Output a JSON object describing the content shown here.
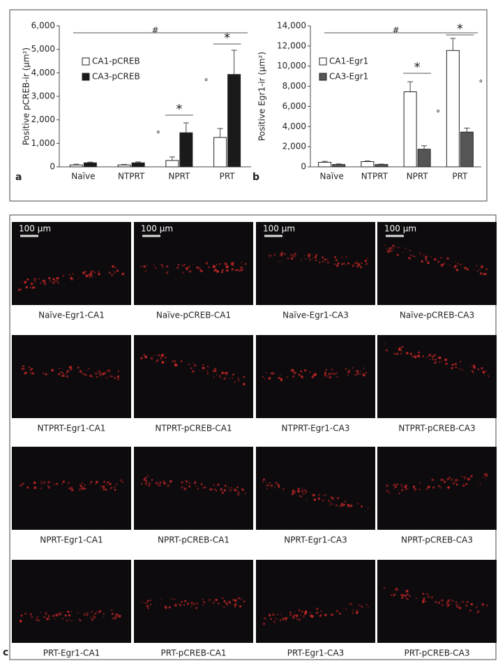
{
  "chart_data": [
    {
      "type": "bar",
      "panel": "a",
      "y_label": "Positive pCREB-ir (μm²)",
      "categories": [
        "Naïve",
        "NTPRT",
        "NPRT",
        "PRT"
      ],
      "series": [
        {
          "name": "CA1-pCREB",
          "color": "#ffffff",
          "values": [
            80,
            80,
            270,
            1250
          ],
          "errors": [
            30,
            20,
            150,
            380
          ]
        },
        {
          "name": "CA3-pCREB",
          "color": "#1a1a1a",
          "values": [
            170,
            170,
            1450,
            3930
          ],
          "errors": [
            30,
            40,
            420,
            1030
          ]
        }
      ],
      "ylim": [
        0,
        6000
      ],
      "yticks": [
        0,
        {
          "value": 1000,
          "label": "1,000"
        },
        {
          "value": 2000,
          "label": "2,000"
        },
        {
          "value": 3000,
          "label": "3,000"
        },
        {
          "value": 4000,
          "label": "4,000"
        },
        {
          "value": 5000,
          "label": "5,000"
        },
        {
          "value": 6000,
          "label": "6,000"
        }
      ],
      "annotations": [
        "#",
        "*",
        "*",
        "°",
        "°"
      ]
    },
    {
      "type": "bar",
      "panel": "b",
      "y_label": "Positive Egr1-ir (μm²)",
      "categories": [
        "Naïve",
        "NTPRT",
        "NPRT",
        "PRT"
      ],
      "series": [
        {
          "name": "CA1-Egr1",
          "color": "#ffffff",
          "values": [
            450,
            520,
            7450,
            11550
          ],
          "errors": [
            100,
            60,
            1000,
            1200
          ]
        },
        {
          "name": "CA3-Egr1",
          "color": "#555555",
          "values": [
            230,
            230,
            1750,
            3450
          ],
          "errors": [
            60,
            40,
            350,
            400
          ]
        }
      ],
      "ylim": [
        0,
        14000
      ],
      "yticks": [
        0,
        {
          "value": 2000,
          "label": "2,000"
        },
        {
          "value": 4000,
          "label": "4,000"
        },
        {
          "value": 6000,
          "label": "6,000"
        },
        {
          "value": 8000,
          "label": "8,000"
        },
        {
          "value": 10000,
          "label": "10,000"
        },
        {
          "value": 12000,
          "label": "12,000"
        },
        {
          "value": 14000,
          "label": "14,000"
        }
      ],
      "annotations": [
        "#",
        "*",
        "*",
        "°",
        "°"
      ]
    }
  ],
  "micrographs": {
    "panel": "c",
    "scale_bar": "100 μm",
    "labels": [
      "Naïve-Egr1-CA1",
      "Naïve-pCREB-CA1",
      "Naïve-Egr1-CA3",
      "Naïve-pCREB-CA3",
      "NTPRT-Egr1-CA1",
      "NTPRT-pCREB-CA1",
      "NTPRT-Egr1-CA3",
      "NTPRT-pCREB-CA3",
      "NPRT-Egr1-CA1",
      "NPRT-pCREB-CA1",
      "NPRT-Egr1-CA3",
      "NPRT-pCREB-CA3",
      "PRT-Egr1-CA1",
      "PRT-pCREB-CA1",
      "PRT-Egr1-CA3",
      "PRT-pCREB-CA3"
    ]
  }
}
